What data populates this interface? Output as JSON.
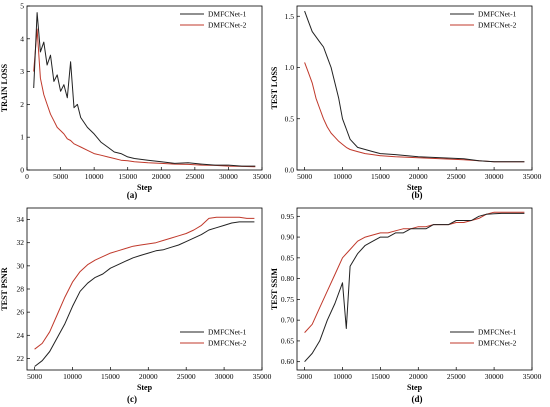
{
  "figure": {
    "background": "#ffffff"
  },
  "chart_data": [
    {
      "type": "line",
      "panel_label": "(a)",
      "xlabel": "Step",
      "ylabel": "TRAIN LOSS",
      "xlim": [
        0,
        35000
      ],
      "ylim": [
        0,
        5
      ],
      "xticks": [
        0,
        5000,
        10000,
        15000,
        20000,
        25000,
        30000,
        35000
      ],
      "yticks": [
        0,
        1,
        2,
        3,
        4,
        5
      ],
      "legend": {
        "position": "top-right"
      },
      "series": [
        {
          "name": "DMFCNet-1",
          "color": "#222222",
          "x": [
            1000,
            1500,
            2000,
            2500,
            3000,
            3500,
            4000,
            4500,
            5000,
            5500,
            6000,
            6500,
            7000,
            7500,
            8000,
            9000,
            10000,
            11000,
            12000,
            13000,
            14000,
            15000,
            16000,
            18000,
            20000,
            22000,
            24000,
            26000,
            28000,
            30000,
            32000,
            34000
          ],
          "y": [
            2.5,
            4.8,
            3.6,
            3.9,
            3.2,
            3.5,
            2.7,
            2.9,
            2.4,
            2.6,
            2.2,
            3.3,
            1.9,
            2.0,
            1.6,
            1.3,
            1.1,
            0.85,
            0.7,
            0.55,
            0.5,
            0.4,
            0.35,
            0.3,
            0.25,
            0.2,
            0.22,
            0.18,
            0.15,
            0.15,
            0.12,
            0.12
          ]
        },
        {
          "name": "DMFCNet-2",
          "color": "#c0392b",
          "x": [
            1000,
            1500,
            2000,
            2500,
            3000,
            3500,
            4000,
            4500,
            5000,
            5500,
            6000,
            6500,
            7000,
            7500,
            8000,
            9000,
            10000,
            11000,
            12000,
            13000,
            14000,
            15000,
            16000,
            18000,
            20000,
            22000,
            24000,
            26000,
            28000,
            30000,
            32000,
            34000
          ],
          "y": [
            3.0,
            4.3,
            2.8,
            2.3,
            2.0,
            1.7,
            1.5,
            1.3,
            1.2,
            1.1,
            0.95,
            0.9,
            0.8,
            0.75,
            0.7,
            0.6,
            0.5,
            0.45,
            0.4,
            0.35,
            0.3,
            0.28,
            0.25,
            0.22,
            0.2,
            0.18,
            0.17,
            0.15,
            0.14,
            0.12,
            0.11,
            0.1
          ]
        }
      ]
    },
    {
      "type": "line",
      "panel_label": "(b)",
      "xlabel": "Step",
      "ylabel": "TEST LOSS",
      "xlim": [
        4000,
        35000
      ],
      "ylim": [
        0,
        1.6
      ],
      "xticks": [
        5000,
        10000,
        15000,
        20000,
        25000,
        30000,
        35000
      ],
      "yticks": [
        0.0,
        0.5,
        1.0,
        1.5
      ],
      "legend": {
        "position": "top-right"
      },
      "series": [
        {
          "name": "DMFCNet-1",
          "color": "#222222",
          "x": [
            5000,
            5500,
            6000,
            6500,
            7000,
            7500,
            8000,
            8500,
            9000,
            9500,
            10000,
            10500,
            11000,
            12000,
            13000,
            14000,
            15000,
            17000,
            20000,
            23000,
            26000,
            28000,
            30000,
            32000,
            34000
          ],
          "y": [
            1.55,
            1.45,
            1.35,
            1.3,
            1.25,
            1.2,
            1.1,
            1.0,
            0.85,
            0.7,
            0.5,
            0.4,
            0.3,
            0.22,
            0.2,
            0.18,
            0.16,
            0.15,
            0.13,
            0.12,
            0.11,
            0.09,
            0.08,
            0.08,
            0.08
          ]
        },
        {
          "name": "DMFCNet-2",
          "color": "#c0392b",
          "x": [
            5000,
            5500,
            6000,
            6500,
            7000,
            7500,
            8000,
            8500,
            9000,
            9500,
            10000,
            10500,
            11000,
            12000,
            13000,
            14000,
            15000,
            17000,
            20000,
            23000,
            26000,
            28000,
            30000,
            32000,
            34000
          ],
          "y": [
            1.05,
            0.95,
            0.85,
            0.7,
            0.6,
            0.5,
            0.42,
            0.36,
            0.32,
            0.28,
            0.25,
            0.22,
            0.2,
            0.18,
            0.16,
            0.15,
            0.14,
            0.13,
            0.12,
            0.11,
            0.1,
            0.09,
            0.08,
            0.08,
            0.08
          ]
        }
      ]
    },
    {
      "type": "line",
      "panel_label": "(c)",
      "xlabel": "Step",
      "ylabel": "TEST PSNR",
      "xlim": [
        4000,
        35000
      ],
      "ylim": [
        21,
        35
      ],
      "xticks": [
        5000,
        10000,
        15000,
        20000,
        25000,
        30000,
        35000
      ],
      "yticks": [
        22,
        24,
        26,
        28,
        30,
        32,
        34
      ],
      "legend": {
        "position": "bottom-right"
      },
      "series": [
        {
          "name": "DMFCNet-1",
          "color": "#222222",
          "x": [
            5000,
            6000,
            7000,
            8000,
            9000,
            10000,
            11000,
            12000,
            13000,
            14000,
            15000,
            16000,
            17000,
            18000,
            19000,
            20000,
            21000,
            22000,
            23000,
            24000,
            25000,
            26000,
            27000,
            28000,
            29000,
            30000,
            31000,
            32000,
            33000,
            34000
          ],
          "y": [
            21.3,
            21.8,
            22.6,
            23.8,
            25.0,
            26.5,
            27.8,
            28.5,
            29.0,
            29.3,
            29.8,
            30.1,
            30.4,
            30.7,
            30.9,
            31.1,
            31.3,
            31.4,
            31.6,
            31.8,
            32.1,
            32.4,
            32.7,
            33.1,
            33.3,
            33.5,
            33.7,
            33.8,
            33.8,
            33.8
          ]
        },
        {
          "name": "DMFCNet-2",
          "color": "#c0392b",
          "x": [
            5000,
            6000,
            7000,
            8000,
            9000,
            10000,
            11000,
            12000,
            13000,
            14000,
            15000,
            16000,
            17000,
            18000,
            19000,
            20000,
            21000,
            22000,
            23000,
            24000,
            25000,
            26000,
            27000,
            28000,
            29000,
            30000,
            31000,
            32000,
            33000,
            34000
          ],
          "y": [
            22.8,
            23.3,
            24.3,
            25.8,
            27.3,
            28.6,
            29.5,
            30.1,
            30.5,
            30.8,
            31.1,
            31.3,
            31.5,
            31.7,
            31.8,
            31.9,
            32.0,
            32.2,
            32.4,
            32.6,
            32.8,
            33.1,
            33.5,
            34.1,
            34.2,
            34.2,
            34.2,
            34.2,
            34.1,
            34.1
          ]
        }
      ]
    },
    {
      "type": "line",
      "panel_label": "(d)",
      "xlabel": "Step",
      "ylabel": "TEST SSIM",
      "xlim": [
        4000,
        35000
      ],
      "ylim": [
        0.58,
        0.97
      ],
      "xticks": [
        5000,
        10000,
        15000,
        20000,
        25000,
        30000,
        35000
      ],
      "yticks": [
        0.6,
        0.65,
        0.7,
        0.75,
        0.8,
        0.85,
        0.9,
        0.95
      ],
      "legend": {
        "position": "bottom-right"
      },
      "series": [
        {
          "name": "DMFCNet-1",
          "color": "#222222",
          "x": [
            5000,
            6000,
            7000,
            8000,
            9000,
            10000,
            10500,
            11000,
            12000,
            13000,
            14000,
            15000,
            16000,
            17000,
            18000,
            19000,
            20000,
            21000,
            22000,
            23000,
            24000,
            25000,
            26000,
            27000,
            28000,
            29000,
            30000,
            31000,
            32000,
            33000,
            34000
          ],
          "y": [
            0.6,
            0.62,
            0.65,
            0.7,
            0.74,
            0.79,
            0.68,
            0.83,
            0.86,
            0.88,
            0.89,
            0.9,
            0.9,
            0.91,
            0.91,
            0.92,
            0.92,
            0.92,
            0.93,
            0.93,
            0.93,
            0.94,
            0.94,
            0.94,
            0.95,
            0.955,
            0.956,
            0.957,
            0.957,
            0.957,
            0.957
          ]
        },
        {
          "name": "DMFCNet-2",
          "color": "#c0392b",
          "x": [
            5000,
            6000,
            7000,
            8000,
            9000,
            10000,
            11000,
            12000,
            13000,
            14000,
            15000,
            16000,
            17000,
            18000,
            19000,
            20000,
            21000,
            22000,
            23000,
            24000,
            25000,
            26000,
            27000,
            28000,
            29000,
            30000,
            31000,
            32000,
            33000,
            34000
          ],
          "y": [
            0.67,
            0.69,
            0.73,
            0.77,
            0.81,
            0.85,
            0.87,
            0.89,
            0.9,
            0.905,
            0.91,
            0.91,
            0.915,
            0.92,
            0.92,
            0.925,
            0.925,
            0.93,
            0.93,
            0.93,
            0.935,
            0.935,
            0.94,
            0.945,
            0.955,
            0.96,
            0.96,
            0.96,
            0.96,
            0.96
          ]
        }
      ]
    }
  ]
}
